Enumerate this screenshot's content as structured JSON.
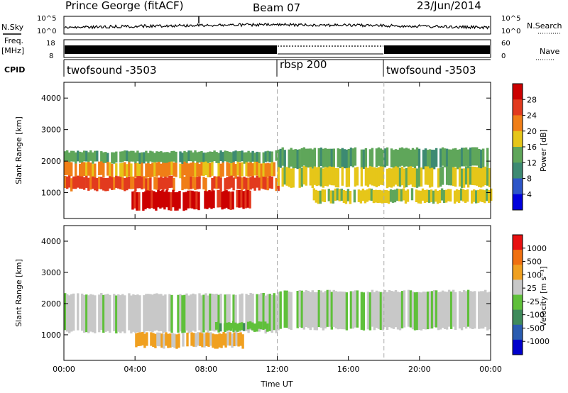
{
  "header": {
    "station": "Prince George (fitACF)",
    "beam": "Beam 07",
    "date": "23/Jun/2014"
  },
  "top_panels": {
    "nsky_label": "N.Sky",
    "nsky_ticks": [
      "10^5",
      "10^0"
    ],
    "nsky_right_ticks": [
      "10^5",
      "10^0"
    ],
    "nsearch_label": "N.Search",
    "freq_label": "Freq.",
    "freq_unit": "[MHz]",
    "freq_ticks": [
      "18",
      "8"
    ],
    "nave_ticks": [
      "60",
      "0"
    ],
    "nave_label": "Nave",
    "cpid_label": "CPID",
    "cpid_segments": [
      {
        "label": "twofsound -3503",
        "start_hour": 0,
        "end_hour": 12
      },
      {
        "label": "rbsp 200",
        "start_hour": 12,
        "end_hour": 18
      },
      {
        "label": "twofsound -3503",
        "start_hour": 18,
        "end_hour": 24
      }
    ]
  },
  "chart_data": [
    {
      "type": "heatmap",
      "name": "power",
      "ylabel": "Slant Range [km]",
      "xlabel": "",
      "ylim": [
        180,
        4500
      ],
      "xlim": [
        0,
        24
      ],
      "x_ticks": [
        0,
        4,
        8,
        12,
        16,
        20,
        24
      ],
      "y_ticks": [
        1000,
        2000,
        3000,
        4000
      ],
      "colorbar_label": "Power [dB]",
      "colorbar_ticks": [
        "28",
        "24",
        "20",
        "16",
        "12",
        "8",
        "4"
      ],
      "colors": [
        "#0000dd",
        "#2d55c8",
        "#3d8a72",
        "#5fa65a",
        "#e6c619",
        "#f07e17",
        "#e23a1e",
        "#cc0000"
      ],
      "bands": [
        {
          "t0": 0.0,
          "t1": 12.0,
          "r0": 1950,
          "r1": 2300,
          "level": 3
        },
        {
          "t0": 0.0,
          "t1": 12.0,
          "r0": 1500,
          "r1": 1950,
          "level": 5
        },
        {
          "t0": 0.0,
          "t1": 12.0,
          "r0": 1100,
          "r1": 1500,
          "level": 6
        },
        {
          "t0": 3.8,
          "t1": 10.5,
          "r0": 480,
          "r1": 1050,
          "level": 7
        },
        {
          "t0": 12.0,
          "t1": 24.0,
          "r0": 1800,
          "r1": 2400,
          "level": 3
        },
        {
          "t0": 12.0,
          "t1": 24.0,
          "r0": 1200,
          "r1": 1800,
          "level": 4
        },
        {
          "t0": 14.0,
          "t1": 24.0,
          "r0": 700,
          "r1": 1100,
          "level": 4
        }
      ]
    },
    {
      "type": "heatmap",
      "name": "velocity",
      "ylabel": "Slant Range [km]",
      "xlabel": "Time UT",
      "ylim": [
        180,
        4500
      ],
      "xlim": [
        0,
        24
      ],
      "x_ticks": [
        0,
        4,
        8,
        12,
        16,
        20,
        24
      ],
      "x_tick_labels": [
        "00:00",
        "04:00",
        "08:00",
        "12:00",
        "16:00",
        "20:00",
        "00:00"
      ],
      "y_ticks": [
        1000,
        2000,
        3000,
        4000
      ],
      "colorbar_label": "Velocity [m s⁻¹]",
      "colorbar_ticks": [
        "1000",
        "500",
        "100",
        "25",
        "-25",
        "-100",
        "-500",
        "-1000"
      ],
      "colors": [
        "#0000cc",
        "#2a5cb0",
        "#3f8b5b",
        "#5fc03a",
        "#c8c8c8",
        "#f0a020",
        "#f07010",
        "#e81010"
      ],
      "bands": [
        {
          "t0": 0.0,
          "t1": 12.0,
          "r0": 1100,
          "r1": 2300,
          "level": 4
        },
        {
          "t0": 12.0,
          "t1": 24.0,
          "r0": 1200,
          "r1": 2400,
          "level": 4
        },
        {
          "t0": 4.0,
          "t1": 10.0,
          "r0": 600,
          "r1": 1050,
          "level": 5
        },
        {
          "t0": 8.5,
          "t1": 11.5,
          "r0": 1150,
          "r1": 1400,
          "level": 3
        }
      ]
    }
  ]
}
